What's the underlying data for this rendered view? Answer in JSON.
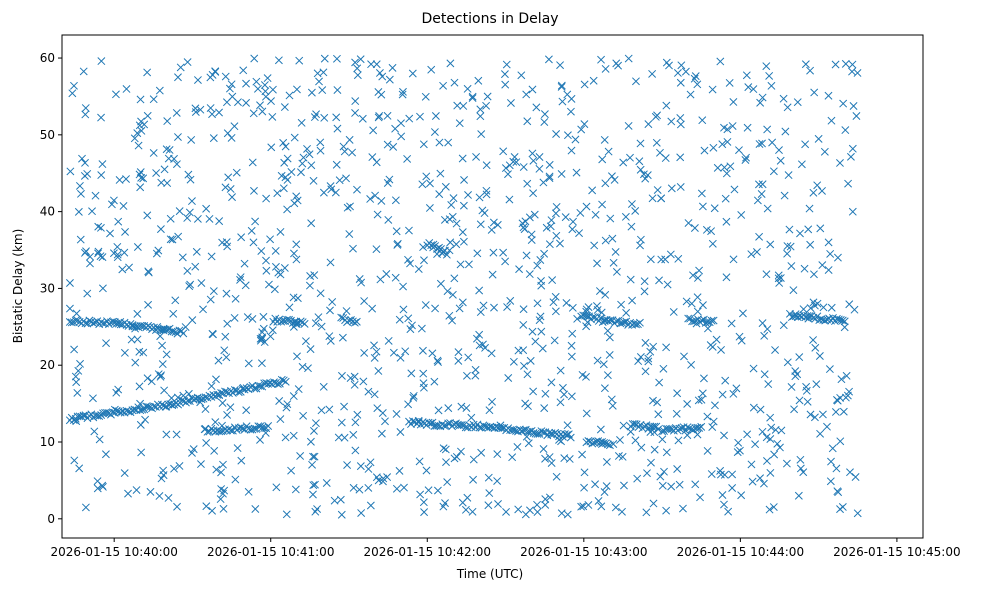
{
  "chart_data": {
    "type": "scatter",
    "title": "Detections in Delay",
    "xlabel": "Time (UTC)",
    "ylabel": "Bistatic Delay (km)",
    "marker": "x",
    "color": "#1f77b4",
    "x_range": [
      "2026-01-15 10:39:40",
      "2026-01-15 10:45:10"
    ],
    "ylim": [
      -2.5,
      63
    ],
    "x_ticks": [
      "2026-01-15 10:40:00",
      "2026-01-15 10:41:00",
      "2026-01-15 10:42:00",
      "2026-01-15 10:43:00",
      "2026-01-15 10:44:00",
      "2026-01-15 10:45:00"
    ],
    "y_ticks": [
      0,
      10,
      20,
      30,
      40,
      50,
      60
    ],
    "grid": false,
    "legend": "none",
    "tracks": [
      {
        "x": [
          "2026-01-15 10:39:43",
          "2026-01-15 10:40:07",
          "2026-01-15 10:40:27"
        ],
        "y": [
          25.8,
          25.3,
          24.2
        ]
      },
      {
        "x": [
          "2026-01-15 10:39:43",
          "2026-01-15 10:40:20",
          "2026-01-15 10:41:06"
        ],
        "y": [
          13.0,
          14.8,
          18.0
        ]
      },
      {
        "x": [
          "2026-01-15 10:40:35",
          "2026-01-15 10:40:59"
        ],
        "y": [
          11.5,
          12.0
        ]
      },
      {
        "x": [
          "2026-01-15 10:41:01",
          "2026-01-15 10:41:13"
        ],
        "y": [
          25.9,
          25.5
        ]
      },
      {
        "x": [
          "2026-01-15 10:41:27",
          "2026-01-15 10:41:33"
        ],
        "y": [
          26.0,
          25.6
        ]
      },
      {
        "x": [
          "2026-01-15 10:42:00",
          "2026-01-15 10:42:08"
        ],
        "y": [
          35.8,
          34.5
        ]
      },
      {
        "x": [
          "2026-01-15 10:41:53",
          "2026-01-15 10:42:22",
          "2026-01-15 10:42:55"
        ],
        "y": [
          12.5,
          12.0,
          10.8
        ]
      },
      {
        "x": [
          "2026-01-15 10:42:59",
          "2026-01-15 10:43:08",
          "2026-01-15 10:43:22"
        ],
        "y": [
          26.5,
          25.8,
          25.3
        ]
      },
      {
        "x": [
          "2026-01-15 10:43:01",
          "2026-01-15 10:43:10"
        ],
        "y": [
          10.0,
          9.8
        ]
      },
      {
        "x": [
          "2026-01-15 10:43:18",
          "2026-01-15 10:43:29"
        ],
        "y": [
          12.2,
          11.8
        ]
      },
      {
        "x": [
          "2026-01-15 10:43:30",
          "2026-01-15 10:43:45"
        ],
        "y": [
          11.6,
          11.8
        ]
      },
      {
        "x": [
          "2026-01-15 10:43:40",
          "2026-01-15 10:43:50"
        ],
        "y": [
          26.0,
          25.6
        ]
      },
      {
        "x": [
          "2026-01-15 10:44:19",
          "2026-01-15 10:44:40"
        ],
        "y": [
          26.5,
          25.8
        ]
      }
    ],
    "clutter": {
      "x_range": [
        "2026-01-15 10:39:43",
        "2026-01-15 10:44:45"
      ],
      "y_range": [
        0.5,
        60
      ],
      "count": 1250
    }
  }
}
